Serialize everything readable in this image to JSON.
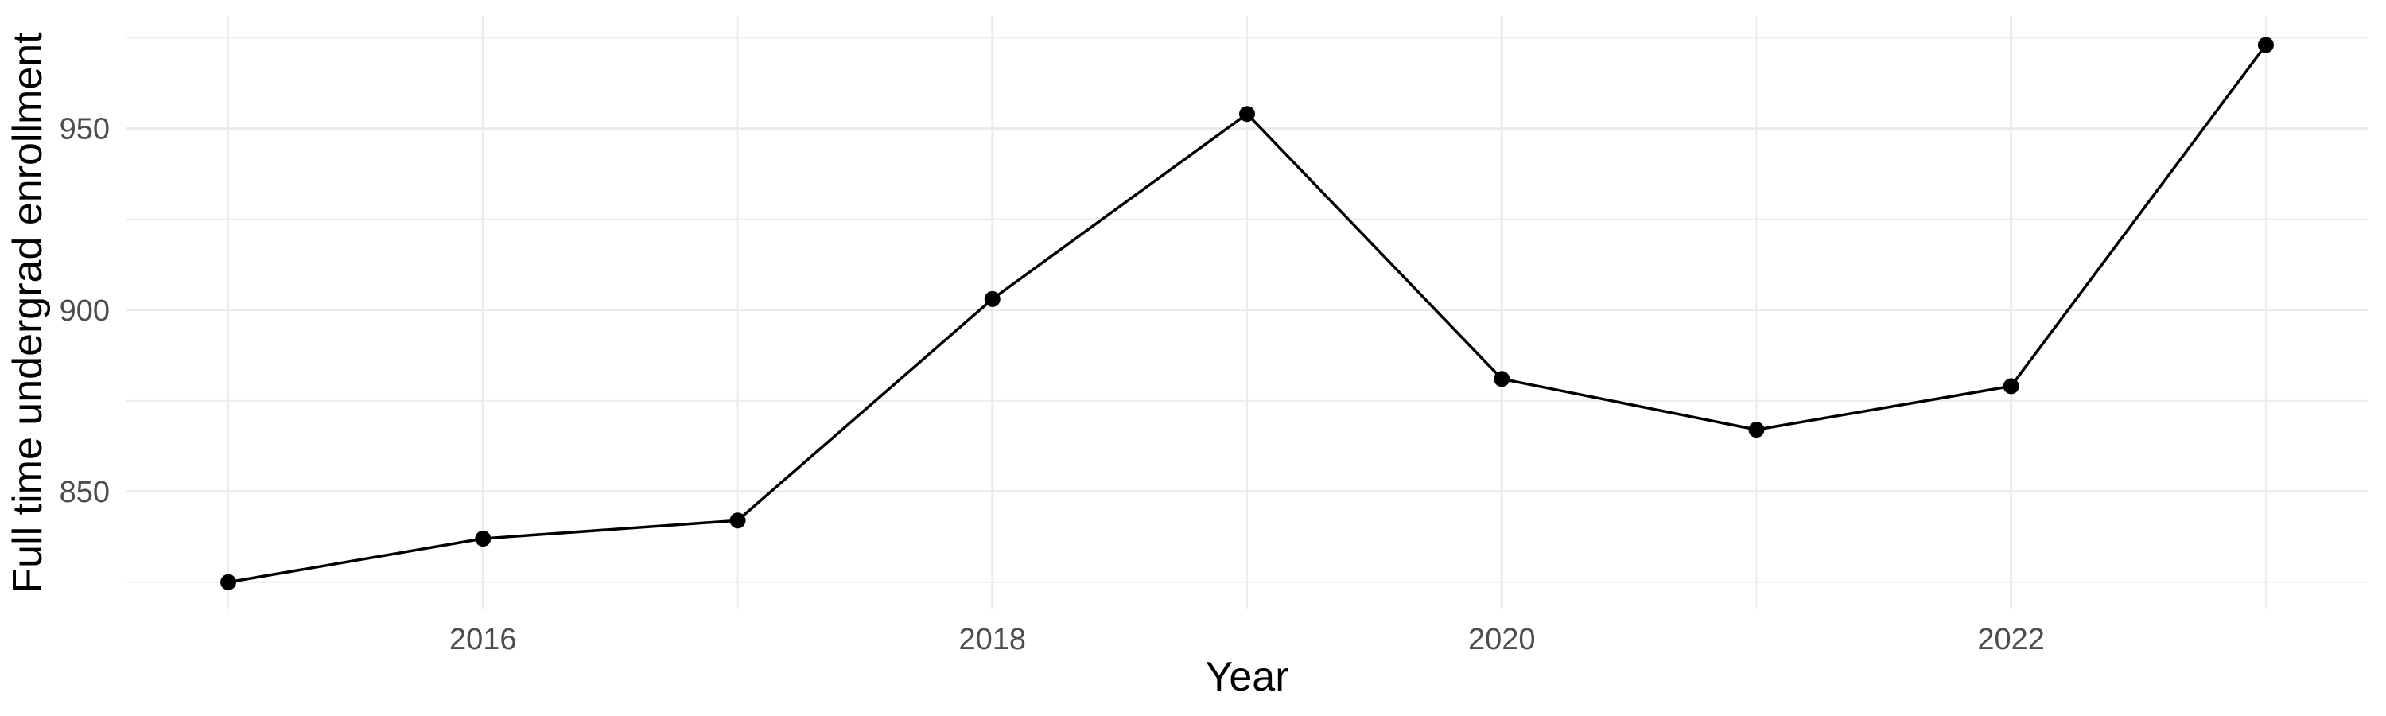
{
  "chart_data": {
    "type": "line",
    "title": "",
    "xlabel": "Year",
    "ylabel": "Full time undergrad enrollment",
    "x": [
      2015,
      2016,
      2017,
      2018,
      2019,
      2020,
      2021,
      2022,
      2023
    ],
    "series": [
      {
        "name": "Full time undergrad enrollment",
        "values": [
          825,
          837,
          842,
          903,
          954,
          881,
          867,
          879,
          973
        ]
      }
    ],
    "xlim": [
      2014.6,
      2023.4
    ],
    "ylim": [
      817.5,
      981.0
    ],
    "x_major_ticks": {
      "values": [
        2016,
        2018,
        2020,
        2022
      ],
      "labels": [
        "2016",
        "2018",
        "2020",
        "2022"
      ]
    },
    "x_minor_gridlines": [
      2015,
      2017,
      2019,
      2021,
      2023
    ],
    "y_major_ticks": {
      "values": [
        850,
        900,
        950
      ],
      "labels": [
        "850",
        "900",
        "950"
      ]
    },
    "y_minor_gridlines": [
      825,
      875,
      925,
      975
    ],
    "grid": "major-and-minor",
    "legend_position": "none",
    "style": {
      "line_color": "#000000",
      "point_color": "#000000",
      "grid_color": "#EBEBEB",
      "tick_label_color": "#4D4D4D",
      "axis_title_color": "#000000",
      "background": "#FFFFFF"
    }
  }
}
